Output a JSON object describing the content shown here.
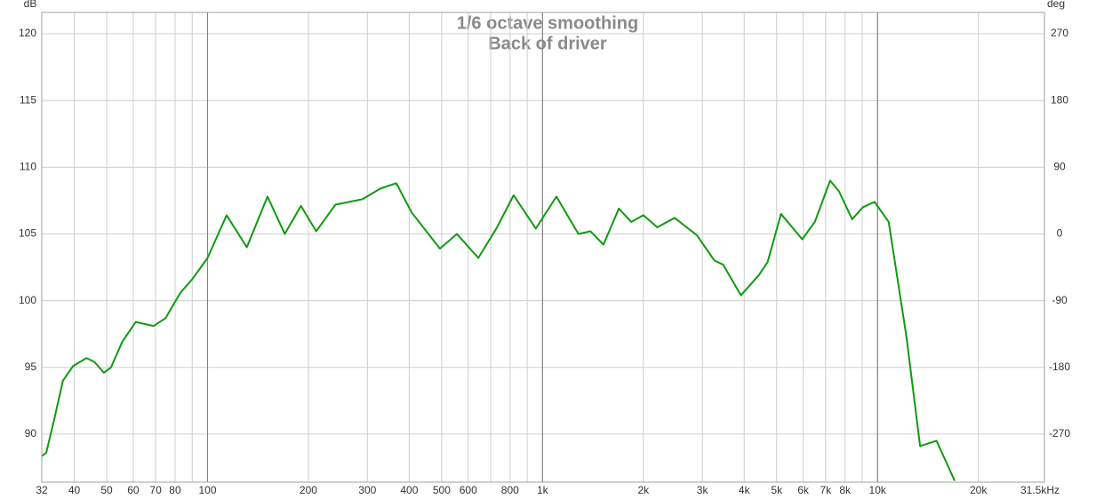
{
  "chart_data": {
    "type": "line",
    "title": "1/6 octave smoothing",
    "subtitle": "Back of driver",
    "ylabel": "dB",
    "y2label": "deg",
    "log_x": true,
    "grid": true,
    "color": "#109a10",
    "xlim": [
      32,
      31500
    ],
    "ylim": [
      86.4,
      121.6
    ],
    "y2lim": [
      -334.6,
      298.7
    ],
    "yticks": [
      90,
      95,
      100,
      105,
      110,
      115,
      120
    ],
    "y2ticks": [
      -270,
      -180,
      -90,
      0,
      90,
      180,
      270
    ],
    "xticks": [
      32,
      40,
      50,
      60,
      70,
      80,
      100,
      200,
      300,
      400,
      500,
      600,
      800,
      {
        "value": 1000,
        "label": "1k"
      },
      {
        "value": 2000,
        "label": "2k"
      },
      {
        "value": 3000,
        "label": "3k"
      },
      {
        "value": 4000,
        "label": "4k"
      },
      {
        "value": 5000,
        "label": "5k"
      },
      {
        "value": 6000,
        "label": "6k"
      },
      {
        "value": 7000,
        "label": "7k"
      },
      {
        "value": 8000,
        "label": "8k"
      },
      {
        "value": 10000,
        "label": "10k"
      },
      {
        "value": 20000,
        "label": "20k"
      },
      {
        "value": 31500,
        "label": "31.5kHz"
      }
    ],
    "xminor": [
      90,
      700,
      900,
      9000
    ],
    "xmajor": [
      100,
      1000,
      10000
    ],
    "x": [
      32,
      33,
      35,
      37,
      39.7,
      43.5,
      46,
      49,
      51.5,
      55.6,
      61,
      69,
      75,
      83,
      90,
      100,
      114,
      131,
      151,
      170,
      190,
      211,
      241,
      290,
      328,
      366,
      407,
      494,
      555,
      643,
      728,
      820,
      955,
      1100,
      1280,
      1390,
      1520,
      1690,
      1840,
      2000,
      2200,
      2480,
      2890,
      3260,
      3460,
      3910,
      4420,
      4700,
      5150,
      5960,
      6500,
      7220,
      7670,
      8400,
      9040,
      9800,
      10800,
      12200,
      13400,
      15000,
      17000
    ],
    "values": [
      88.35,
      88.6,
      91.3,
      94,
      95.1,
      95.7,
      95.4,
      94.6,
      95,
      96.9,
      98.4,
      98.1,
      98.7,
      100.6,
      101.6,
      103.2,
      106.4,
      104,
      107.8,
      105,
      107.1,
      105.2,
      107.2,
      107.6,
      108.4,
      108.8,
      106.6,
      103.9,
      105,
      103.2,
      105.4,
      107.9,
      105.4,
      107.8,
      105,
      105.2,
      104.2,
      106.9,
      105.9,
      106.4,
      105.5,
      106.2,
      104.9,
      103,
      102.7,
      100.4,
      101.9,
      102.9,
      106.5,
      104.6,
      105.9,
      109,
      108.2,
      106.1,
      107,
      107.4,
      105.9,
      97.3,
      89.1,
      89.5,
      86.5
    ]
  }
}
